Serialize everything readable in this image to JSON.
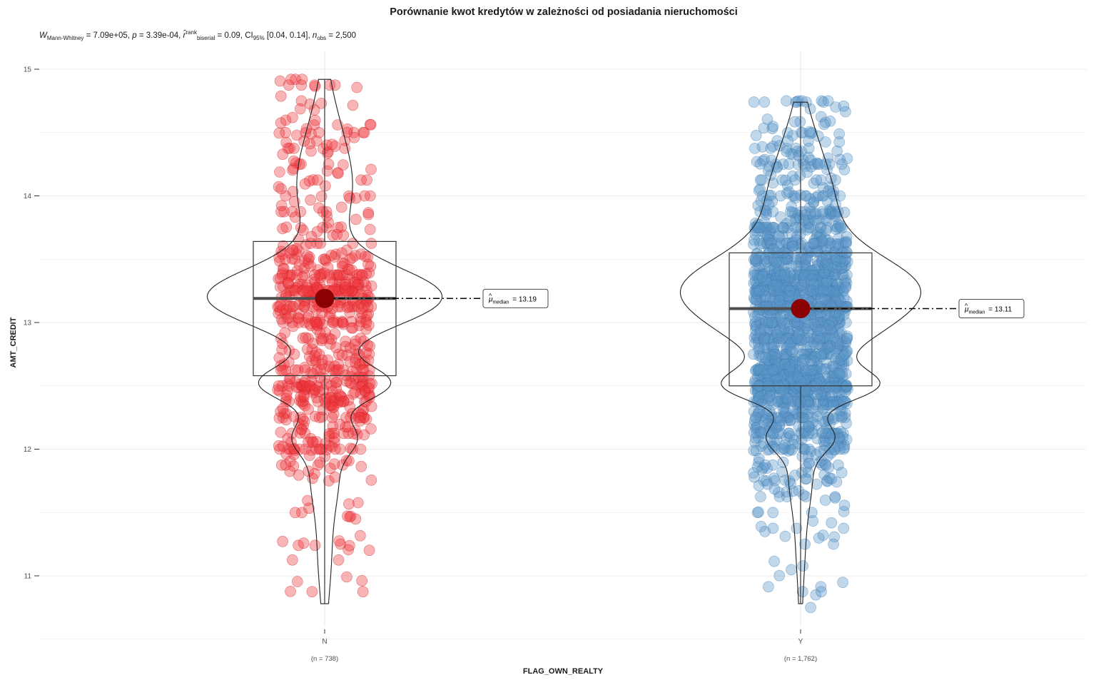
{
  "chart_data": {
    "type": "violin-box-scatter",
    "title": "Porównanie kwot kredytów w zależności od posiadania nieruchomości",
    "subtitle": {
      "stat_symbol": "W",
      "stat_sub": "Mann-Whitney",
      "stat_value": " = 7.09e+05",
      "p_symbol": "p",
      "p_value": " = 3.39e-04",
      "effect_symbol": "r̂",
      "effect_sup": "rank",
      "effect_sub": "biserial",
      "effect_value": " = 0.09",
      "ci_label": "CI",
      "ci_sub": "95%",
      "ci_value": " [0.04, 0.14]",
      "n_symbol": "n",
      "n_sub": "obs",
      "n_value": " = 2,500"
    },
    "xlabel": "FLAG_OWN_REALTY",
    "ylabel": "AMT_CREDIT",
    "ylim": [
      10.5,
      15.5
    ],
    "yticks": [
      11,
      12,
      13,
      14,
      15
    ],
    "ytick_labels": [
      "11",
      "12",
      "13",
      "14",
      "15"
    ],
    "grid": true,
    "groups": [
      {
        "category": "N",
        "count_label": "(n = 738)",
        "color": "#e41a1c",
        "n": 738,
        "median": 13.19,
        "q1": 12.58,
        "q3": 13.64,
        "min": 10.78,
        "max": 14.92,
        "median_label_prefix": "μ",
        "median_label_sub": "median",
        "median_label_value": "= 13.19"
      },
      {
        "category": "Y",
        "count_label": "(n = 1,762)",
        "color": "#377eb8",
        "n": 1762,
        "median": 13.11,
        "q1": 12.5,
        "q3": 13.55,
        "min": 10.78,
        "max": 14.74,
        "median_label_prefix": "μ",
        "median_label_sub": "median",
        "median_label_value": "= 13.11"
      }
    ]
  }
}
